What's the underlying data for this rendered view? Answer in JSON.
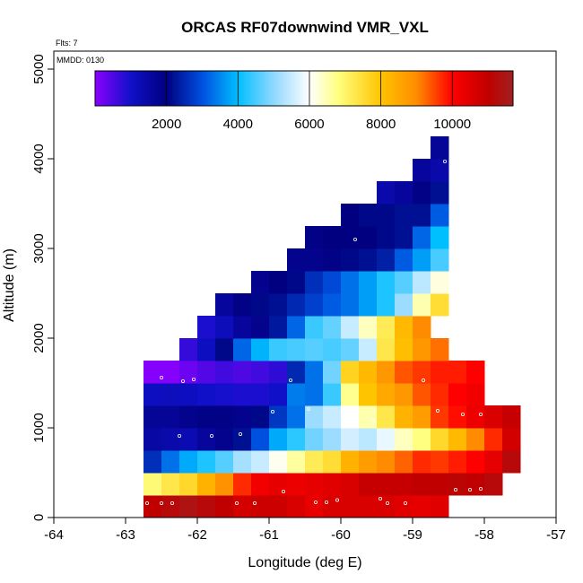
{
  "chart_data": {
    "type": "heatmap",
    "title": "ORCAS RF07downwind VMR_VXL",
    "annotations": [
      "Flts: 7",
      "MMDD: 0130"
    ],
    "xlabel": "Longitude (deg E)",
    "ylabel": "Altitude (m)",
    "xlim": [
      -64,
      -57
    ],
    "ylim": [
      0,
      5200
    ],
    "x_ticks": [
      -64,
      -63,
      -62,
      -61,
      -60,
      -59,
      -58,
      -57
    ],
    "x_tick_labels": [
      "-64",
      "-63",
      "-62",
      "-61",
      "-60",
      "-59",
      "-58",
      "-57"
    ],
    "y_ticks": [
      0,
      1000,
      2000,
      3000,
      4000,
      5000
    ],
    "y_tick_labels": [
      "0",
      "1000",
      "2000",
      "3000",
      "4000",
      "5000"
    ],
    "cell_width_deg": 0.25,
    "cell_height_m": 250,
    "colorbar": {
      "min": 0,
      "max": 11700,
      "ticks": [
        2000,
        4000,
        6000,
        8000,
        10000
      ],
      "tick_labels": [
        "2000",
        "4000",
        "6000",
        "8000",
        "10000"
      ],
      "stops": [
        [
          0,
          "#8b00ff"
        ],
        [
          1000,
          "#1010c8"
        ],
        [
          2000,
          "#000080"
        ],
        [
          3000,
          "#0050e0"
        ],
        [
          4000,
          "#00bfff"
        ],
        [
          5000,
          "#90d8ff"
        ],
        [
          6000,
          "#ffffff"
        ],
        [
          6800,
          "#ffff80"
        ],
        [
          8000,
          "#ffc400"
        ],
        [
          9000,
          "#ff8c00"
        ],
        [
          10000,
          "#ff0000"
        ],
        [
          11000,
          "#c00000"
        ],
        [
          11700,
          "#a02020"
        ]
      ]
    },
    "rows": [
      {
        "alt": 0,
        "x0": -62.75,
        "values": [
          11000,
          11200,
          11400,
          11200,
          11000,
          10700,
          10800,
          10800,
          10600,
          10400,
          10600,
          10600,
          10600,
          10600,
          10500,
          10400,
          10500
        ]
      },
      {
        "alt": 250,
        "x0": -62.75,
        "values": [
          6900,
          7300,
          7600,
          8300,
          8900,
          9700,
          10200,
          10400,
          10300,
          10400,
          10500,
          10600,
          10900,
          10900,
          10900,
          11000,
          11000,
          11100,
          11000,
          11200
        ]
      },
      {
        "alt": 500,
        "x0": -62.75,
        "values": [
          2600,
          3300,
          3800,
          4200,
          4600,
          5200,
          5500,
          6100,
          6600,
          7200,
          7500,
          8300,
          8700,
          9000,
          9300,
          9700,
          9600,
          9800,
          10000,
          10400,
          11200
        ]
      },
      {
        "alt": 750,
        "x0": -62.75,
        "values": [
          1500,
          1400,
          1300,
          1600,
          1800,
          2200,
          3000,
          3800,
          4300,
          4800,
          5100,
          5600,
          5400,
          5800,
          6400,
          6800,
          7600,
          8200,
          9000,
          9700,
          10700
        ]
      },
      {
        "alt": 1000,
        "x0": -62.75,
        "values": [
          1700,
          1700,
          1800,
          1900,
          1900,
          1800,
          2100,
          2700,
          3300,
          5100,
          5500,
          6000,
          6500,
          7300,
          8300,
          8700,
          9600,
          9900,
          10300,
          10600,
          10900
        ]
      },
      {
        "alt": 1250,
        "x0": -62.75,
        "values": [
          1100,
          1150,
          1100,
          1000,
          950,
          900,
          900,
          1000,
          3400,
          3300,
          4400,
          6700,
          8000,
          8500,
          8800,
          9400,
          9700,
          10000,
          10200
        ]
      },
      {
        "alt": 1500,
        "x0": -62.75,
        "values": [
          50,
          50,
          250,
          450,
          600,
          500,
          600,
          750,
          2500,
          3300,
          4800,
          7700,
          8200,
          8800,
          9400,
          9600,
          9800,
          9800,
          10000
        ]
      },
      {
        "alt": 1750,
        "x0": -62.25,
        "values": [
          700,
          1100,
          2100,
          3200,
          3900,
          4400,
          4500,
          4600,
          4500,
          4700,
          5500,
          7300,
          8100,
          8800,
          9200
        ]
      },
      {
        "alt": 2000,
        "x0": -62.0,
        "values": [
          900,
          1200,
          1600,
          1800,
          2300,
          3200,
          4400,
          4700,
          5500,
          6400,
          7200,
          8200,
          9000
        ]
      },
      {
        "alt": 2250,
        "x0": -61.75,
        "values": [
          1600,
          1900,
          2100,
          2200,
          2500,
          2800,
          3100,
          3300,
          3700,
          4200,
          5100,
          6500,
          7500
        ]
      },
      {
        "alt": 2500,
        "x0": -61.25,
        "values": [
          1800,
          2000,
          2100,
          2600,
          2900,
          3300,
          3700,
          4200,
          4600,
          5400,
          6200
        ]
      },
      {
        "alt": 2750,
        "x0": -60.75,
        "values": [
          1800,
          1800,
          1900,
          2100,
          2200,
          2400,
          3100,
          3700,
          4500
        ]
      },
      {
        "alt": 3000,
        "x0": -60.5,
        "values": [
          1900,
          2000,
          2000,
          2000,
          2100,
          2200,
          3200,
          4000
        ]
      },
      {
        "alt": 3250,
        "x0": -60.0,
        "values": [
          2000,
          2100,
          2100,
          2200,
          2200,
          3100
        ]
      },
      {
        "alt": 3500,
        "x0": -59.5,
        "values": [
          1400,
          1600,
          1900,
          2200
        ]
      },
      {
        "alt": 3750,
        "x0": -59.0,
        "values": [
          1600,
          1400
        ]
      },
      {
        "alt": 4000,
        "x0": -58.75,
        "values": [
          1700
        ]
      }
    ],
    "sample_points": [
      [
        -62.7,
        160
      ],
      [
        -62.5,
        160
      ],
      [
        -62.35,
        160
      ],
      [
        -61.45,
        160
      ],
      [
        -61.2,
        160
      ],
      [
        -60.8,
        290
      ],
      [
        -60.35,
        170
      ],
      [
        -60.2,
        170
      ],
      [
        -60.05,
        195
      ],
      [
        -59.45,
        210
      ],
      [
        -59.35,
        160
      ],
      [
        -59.1,
        160
      ],
      [
        -58.4,
        310
      ],
      [
        -58.2,
        310
      ],
      [
        -58.05,
        320
      ],
      [
        -62.8,
        630
      ],
      [
        -62.25,
        910
      ],
      [
        -61.8,
        910
      ],
      [
        -62.2,
        1520
      ],
      [
        -62.05,
        1540
      ],
      [
        -62.5,
        1560
      ],
      [
        -61.4,
        930
      ],
      [
        -60.95,
        1180
      ],
      [
        -60.7,
        1530
      ],
      [
        -60.45,
        1210
      ],
      [
        -59.95,
        1190
      ],
      [
        -59.55,
        1080
      ],
      [
        -58.85,
        1530
      ],
      [
        -58.65,
        1190
      ],
      [
        -58.2,
        2090
      ],
      [
        -58.3,
        1150
      ],
      [
        -58.05,
        1150
      ],
      [
        -58.45,
        3020
      ],
      [
        -58.55,
        3970
      ],
      [
        -59.8,
        3100
      ]
    ]
  }
}
